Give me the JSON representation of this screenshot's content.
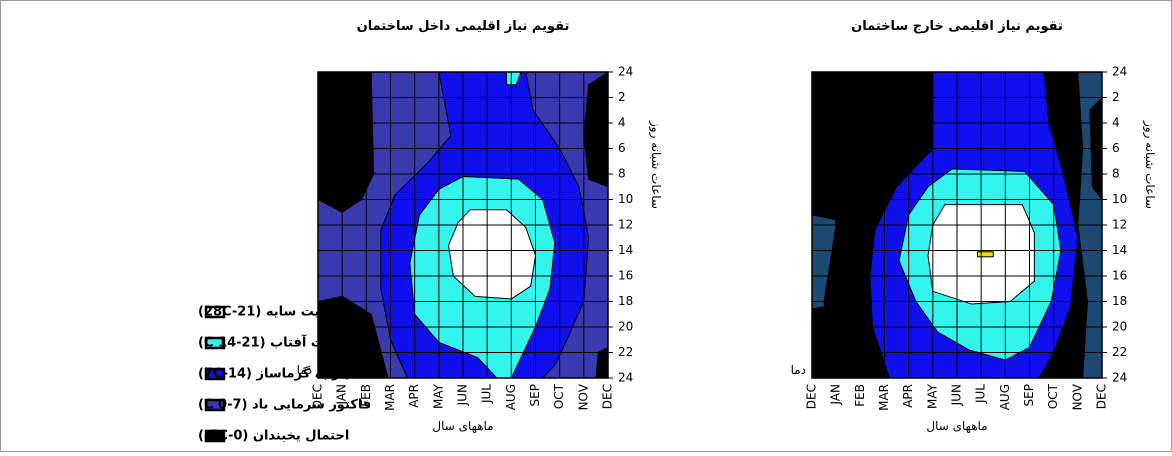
{
  "charts": [
    {
      "title": "تقویم نیاز اقلیمی داخل ساختمان",
      "x_label": "ماههای سال",
      "y_label": "ساعات شبانه روز",
      "corner_label": "دما",
      "months": [
        "DEC",
        "JAN",
        "FEB",
        "MAR",
        "APR",
        "MAY",
        "JUN",
        "JUL",
        "AUG",
        "SEP",
        "OCT",
        "NOV",
        "DEC"
      ],
      "hours": [
        "24",
        "2",
        "4",
        "6",
        "8",
        "10",
        "12",
        "14",
        "16",
        "18",
        "20",
        "22",
        "24"
      ]
    },
    {
      "title": "تقویم نیاز اقلیمی خارج ساختمان",
      "x_label": "ماههای سال",
      "y_label": "ساعات شبانه روز",
      "corner_label": "دما",
      "months": [
        "DEC",
        "JAN",
        "FEB",
        "MAR",
        "APR",
        "MAY",
        "JUN",
        "JUL",
        "AUG",
        "SEP",
        "OCT",
        "NOV",
        "DEC"
      ],
      "hours": [
        "24",
        "2",
        "4",
        "6",
        "8",
        "10",
        "12",
        "14",
        "16",
        "18",
        "20",
        "22",
        "24"
      ]
    }
  ],
  "legend": [
    {
      "label": "کفایت سایه (28C-21)",
      "color": "#ffffff"
    },
    {
      "label": "کفایت آفتاب (21-14 C)",
      "color": "#33f5ee"
    },
    {
      "label": "نیاز به گرماساز (14-7C)",
      "color": "#1010ee"
    },
    {
      "label": "فاکتور سرمایی باد (7-0 C)",
      "color": "#3a3ab0"
    },
    {
      "label": "احتمال یخبندان (0-7C-)",
      "color": "#000000"
    }
  ]
}
